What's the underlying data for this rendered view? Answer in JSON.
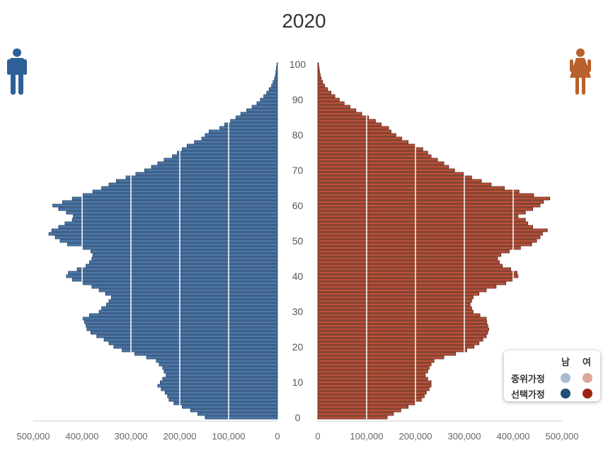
{
  "chart_data": {
    "type": "bar",
    "orientation": "horizontal-population-pyramid",
    "title": "2020",
    "ages": [
      0,
      1,
      2,
      3,
      4,
      5,
      6,
      7,
      8,
      9,
      10,
      11,
      12,
      13,
      14,
      15,
      16,
      17,
      18,
      19,
      20,
      21,
      22,
      23,
      24,
      25,
      26,
      27,
      28,
      29,
      30,
      31,
      32,
      33,
      34,
      35,
      36,
      37,
      38,
      39,
      40,
      41,
      42,
      43,
      44,
      45,
      46,
      47,
      48,
      49,
      50,
      51,
      52,
      53,
      54,
      55,
      56,
      57,
      58,
      59,
      60,
      61,
      62,
      63,
      64,
      65,
      66,
      67,
      68,
      69,
      70,
      71,
      72,
      73,
      74,
      75,
      76,
      77,
      78,
      79,
      80,
      81,
      82,
      83,
      84,
      85,
      86,
      87,
      88,
      89,
      90,
      91,
      92,
      93,
      94,
      95,
      96,
      97,
      98,
      99,
      100
    ],
    "age_tick_labels": [
      "0",
      "10",
      "20",
      "30",
      "40",
      "50",
      "60",
      "70",
      "80",
      "90",
      "100"
    ],
    "x_tick_labels_male": [
      "500,000",
      "400,000",
      "300,000",
      "200,000",
      "100,000",
      "0"
    ],
    "x_tick_labels_female": [
      "0",
      "100,000",
      "200,000",
      "300,000",
      "400,000",
      "500,000"
    ],
    "xlim": [
      0,
      500000
    ],
    "gridlines": [
      100000,
      200000,
      300000,
      400000
    ],
    "series": [
      {
        "name": "남",
        "values": [
          148000,
          163000,
          178000,
          195000,
          212000,
          222000,
          225000,
          230000,
          238000,
          245000,
          240000,
          235000,
          228000,
          232000,
          235000,
          242000,
          248000,
          268000,
          292000,
          318000,
          335000,
          345000,
          355000,
          370000,
          382000,
          390000,
          392000,
          395000,
          400000,
          385000,
          365000,
          360000,
          350000,
          345000,
          340000,
          352000,
          365000,
          380000,
          400000,
          420000,
          432000,
          428000,
          410000,
          392000,
          385000,
          380000,
          378000,
          382000,
          400000,
          430000,
          445000,
          455000,
          468000,
          462000,
          448000,
          435000,
          420000,
          418000,
          432000,
          448000,
          460000,
          440000,
          420000,
          398000,
          378000,
          360000,
          345000,
          330000,
          310000,
          290000,
          272000,
          258000,
          245000,
          232000,
          215000,
          205000,
          195000,
          185000,
          170000,
          155000,
          148000,
          140000,
          118000,
          108000,
          96000,
          85000,
          75000,
          63000,
          52000,
          42000,
          35000,
          28000,
          22000,
          17000,
          12000,
          9000,
          6000,
          4000,
          3000,
          2000,
          1000
        ]
      },
      {
        "name": "여",
        "values": [
          142000,
          155000,
          170000,
          185000,
          200000,
          212000,
          218000,
          222000,
          228000,
          232000,
          232000,
          225000,
          220000,
          225000,
          228000,
          232000,
          238000,
          258000,
          282000,
          305000,
          320000,
          330000,
          338000,
          345000,
          348000,
          350000,
          348000,
          346000,
          345000,
          332000,
          318000,
          315000,
          312000,
          315000,
          318000,
          330000,
          345000,
          365000,
          385000,
          400000,
          410000,
          408000,
          395000,
          378000,
          372000,
          368000,
          375000,
          392000,
          415000,
          438000,
          448000,
          455000,
          460000,
          470000,
          440000,
          430000,
          425000,
          410000,
          425000,
          440000,
          455000,
          462000,
          475000,
          442000,
          412000,
          382000,
          355000,
          335000,
          315000,
          298000,
          280000,
          268000,
          258000,
          245000,
          232000,
          225000,
          215000,
          200000,
          185000,
          172000,
          160000,
          150000,
          145000,
          130000,
          118000,
          104000,
          90000,
          78000,
          66000,
          54000,
          44000,
          35000,
          27000,
          20000,
          14000,
          10000,
          7000,
          5000,
          3500,
          2500,
          1500
        ]
      }
    ],
    "legend": {
      "col_labels": [
        "남",
        "여"
      ],
      "row_labels": [
        "중위가정",
        "선택가정"
      ],
      "colors": {
        "male_median": "#a7bdd4",
        "female_median": "#d9a89c",
        "male_selected": "#1f4e79",
        "female_selected": "#9b2213"
      }
    },
    "bar_colors": {
      "male_fill": "#4b79ac",
      "male_edge": "#1f3a5c",
      "female_fill": "#b7533a",
      "female_edge": "#5a1f12",
      "male_icon": "#2e6098",
      "female_icon": "#b8612d"
    }
  }
}
